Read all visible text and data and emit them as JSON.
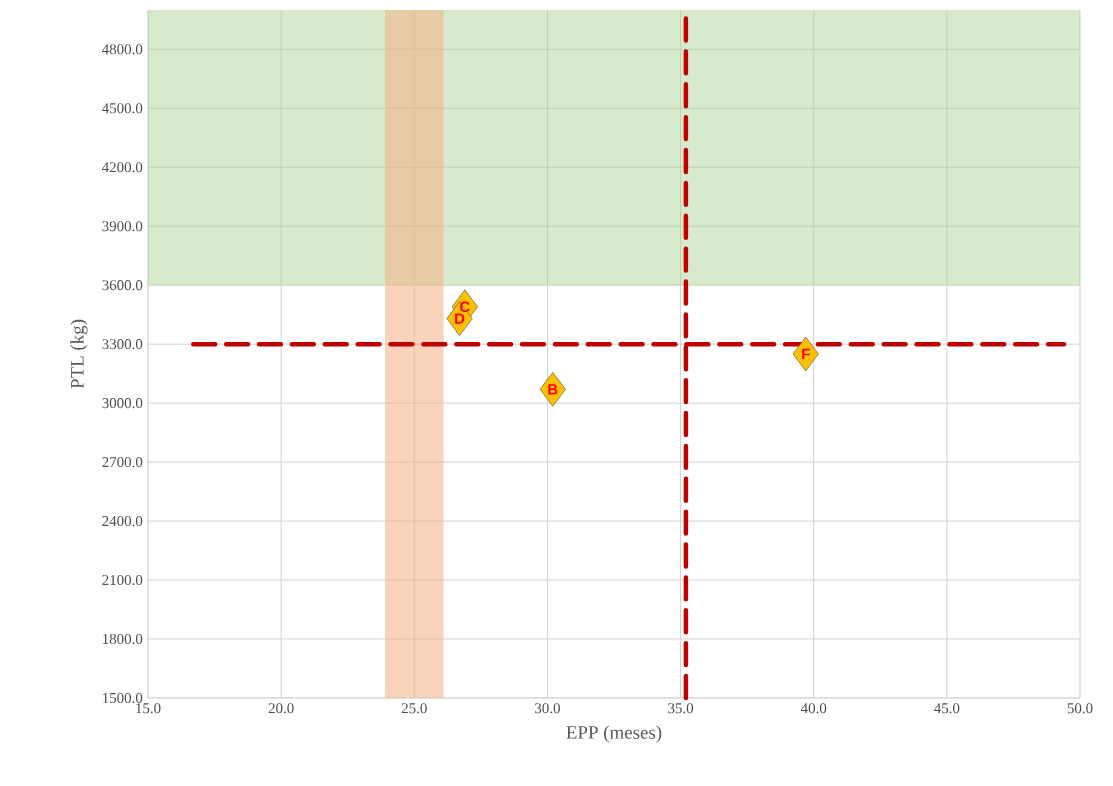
{
  "chart_data": {
    "type": "scatter",
    "xlabel": "EPP (meses)",
    "ylabel": "PTL (kg)",
    "x": [
      26.9,
      26.7,
      30.2,
      39.7
    ],
    "values": [
      3490,
      3430,
      3070,
      3250
    ],
    "value_labels": [
      "C",
      "D",
      "B",
      "F"
    ],
    "color": "#ffc000",
    "marker": "diamond",
    "grid": true,
    "xlim": [
      15,
      50
    ],
    "ylim": [
      1500,
      5000
    ],
    "xticks": [
      {
        "value": 15,
        "label": "15.0"
      },
      {
        "value": 20,
        "label": "20.0"
      },
      {
        "value": 25,
        "label": "25.0"
      },
      {
        "value": 30,
        "label": "30.0"
      },
      {
        "value": 35,
        "label": "35.0"
      },
      {
        "value": 40,
        "label": "40.0"
      },
      {
        "value": 45,
        "label": "45.0"
      },
      {
        "value": 50,
        "label": "50.0"
      }
    ],
    "yticks": [
      {
        "value": 1500,
        "label": "1500.0"
      },
      {
        "value": 1800,
        "label": "1800.0"
      },
      {
        "value": 2100,
        "label": "2100.0"
      },
      {
        "value": 2400,
        "label": "2400.0"
      },
      {
        "value": 2700,
        "label": "2700.0"
      },
      {
        "value": 3000,
        "label": "3000.0"
      },
      {
        "value": 3300,
        "label": "3300.0"
      },
      {
        "value": 3600,
        "label": "3600.0"
      },
      {
        "value": 3900,
        "label": "3900.0"
      },
      {
        "value": 4200,
        "label": "4200.0"
      },
      {
        "value": 4500,
        "label": "4500.0"
      },
      {
        "value": 4800,
        "label": "4800.0"
      }
    ],
    "ref_lines": [
      {
        "axis": "y",
        "value": 3300,
        "color": "#c00000",
        "line_style": "dashed"
      },
      {
        "axis": "x",
        "value": 35.2,
        "color": "#c00000",
        "line_style": "dashed"
      }
    ],
    "bands": [
      {
        "axis": "y",
        "from": 3600,
        "to": 5000,
        "color": "#a9d18e"
      },
      {
        "axis": "x",
        "from": 23.9,
        "to": 26.1,
        "color": "#f4b183"
      }
    ]
  }
}
